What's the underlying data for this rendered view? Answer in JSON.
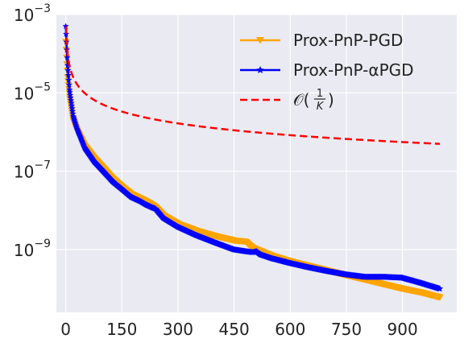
{
  "chart_data": {
    "type": "line",
    "yscale": "log",
    "title": "",
    "xlabel": "",
    "ylabel": "",
    "xlim": [
      -25,
      1045
    ],
    "ylim": [
      2.5e-11,
      0.001
    ],
    "grid": true,
    "legend_position": "top-right",
    "x_ticks": [
      0,
      150,
      300,
      450,
      600,
      750,
      900
    ],
    "x_tick_labels": [
      "0",
      "150",
      "300",
      "450",
      "600",
      "750",
      "900"
    ],
    "y_ticks": [
      1e-09,
      1e-07,
      1e-05,
      0.001
    ],
    "y_tick_labels": [
      {
        "base": "10",
        "exp": "−9"
      },
      {
        "base": "10",
        "exp": "−7"
      },
      {
        "base": "10",
        "exp": "−5"
      },
      {
        "base": "10",
        "exp": "−3"
      }
    ],
    "colors": {
      "background": "#eaeaf2",
      "grid": "#ffffff",
      "pgd": "#ffa500",
      "apgd": "#0000ff",
      "bound": "#ff0000"
    },
    "series": [
      {
        "name": "Prox-PnP-PGD",
        "color": "#ffa500",
        "marker": "triangle-down",
        "x": [
          0,
          2,
          5,
          10,
          20,
          30,
          50,
          75,
          100,
          125,
          150,
          175,
          200,
          215,
          230,
          240,
          260,
          300,
          350,
          400,
          450,
          480,
          490,
          500,
          550,
          600,
          650,
          700,
          750,
          800,
          850,
          900,
          950,
          1000
        ],
        "y": [
          0.0002,
          8e-05,
          2.5e-05,
          8e-06,
          2e-06,
          1.1e-06,
          4.5e-07,
          2.2e-07,
          1.2e-07,
          6.5e-08,
          4e-08,
          2.6e-08,
          2e-08,
          1.7e-08,
          1.4e-08,
          1.2e-08,
          7.5e-09,
          4.5e-09,
          3e-09,
          2.2e-09,
          1.7e-09,
          1.6e-09,
          1.3e-09,
          1.1e-09,
          7e-10,
          5e-10,
          3.8e-10,
          2.9e-10,
          2.2e-10,
          1.7e-10,
          1.3e-10,
          1e-10,
          8e-11,
          6e-11
        ]
      },
      {
        "name": "Prox-PnP-αPGD",
        "color": "#0000ff",
        "marker": "star",
        "x": [
          0,
          2,
          5,
          10,
          20,
          30,
          50,
          75,
          100,
          125,
          150,
          175,
          200,
          215,
          230,
          240,
          260,
          300,
          350,
          400,
          450,
          480,
          500,
          510,
          520,
          550,
          600,
          650,
          700,
          750,
          800,
          850,
          900,
          950,
          1000
        ],
        "y": [
          0.0005,
          0.0002,
          5e-05,
          1.2e-05,
          2.5e-06,
          1.2e-06,
          4e-07,
          1.8e-07,
          1e-07,
          5.5e-08,
          3.5e-08,
          2.2e-08,
          1.7e-08,
          1.4e-08,
          1.2e-08,
          1.1e-08,
          6.5e-09,
          3.8e-09,
          2.3e-09,
          1.5e-09,
          1e-09,
          9e-10,
          8.5e-10,
          9e-10,
          7.5e-10,
          6e-10,
          4.5e-10,
          3.5e-10,
          2.8e-10,
          2.3e-10,
          2e-10,
          2e-10,
          1.9e-10,
          1.4e-10,
          1e-10
        ]
      },
      {
        "name": "bound",
        "color": "#ff0000",
        "style": "dashed",
        "scale": 0.0005
      }
    ],
    "legend": [
      {
        "label": "Prox-PnP-PGD",
        "color": "#ffa500",
        "marker": "triangle-down"
      },
      {
        "label": "Prox-PnP-αPGD",
        "color": "#0000ff",
        "marker": "star"
      },
      {
        "label": "𝒪(1/K)",
        "color": "#ff0000",
        "style": "dashed",
        "math": {
          "head": "𝒪(",
          "num": "1",
          "den": "K",
          "tail": ")"
        }
      }
    ]
  }
}
